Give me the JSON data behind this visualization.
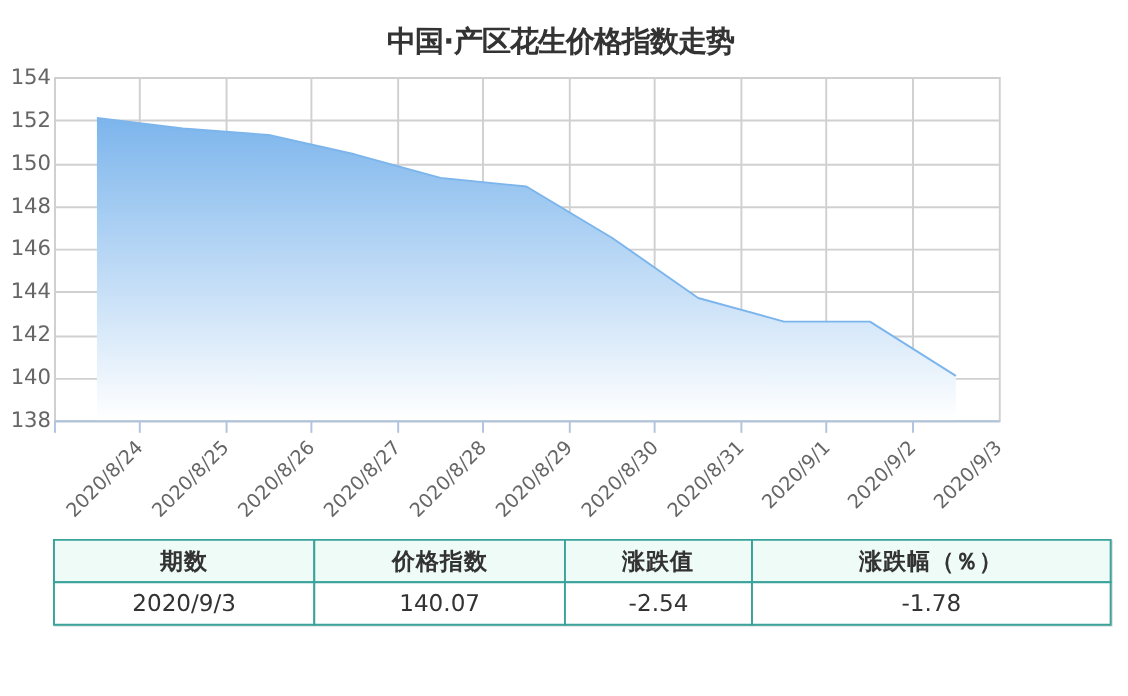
{
  "chart_data": {
    "type": "area",
    "title": "中国·产区花生价格指数走势",
    "categories": [
      "2020/8/24",
      "2020/8/25",
      "2020/8/26",
      "2020/8/27",
      "2020/8/28",
      "2020/8/29",
      "2020/8/30",
      "2020/8/31",
      "2020/9/1",
      "2020/9/2",
      "2020/9/3"
    ],
    "series": [
      {
        "color": "#7cb5ec",
        "values": [
          152.1,
          151.6,
          151.3,
          150.4,
          149.3,
          148.9,
          146.5,
          143.7,
          142.6,
          142.6,
          140.07
        ]
      }
    ],
    "ylim": [
      138,
      154
    ],
    "yticks": [
      138,
      140,
      142,
      144,
      146,
      148,
      150,
      152,
      154
    ],
    "grid": true,
    "annotations": [
      "期数",
      "价格指数",
      "涨跌值",
      "涨跌幅（％）",
      "2020/9/3",
      "140.07",
      "-2.54",
      "-1.78"
    ]
  }
}
